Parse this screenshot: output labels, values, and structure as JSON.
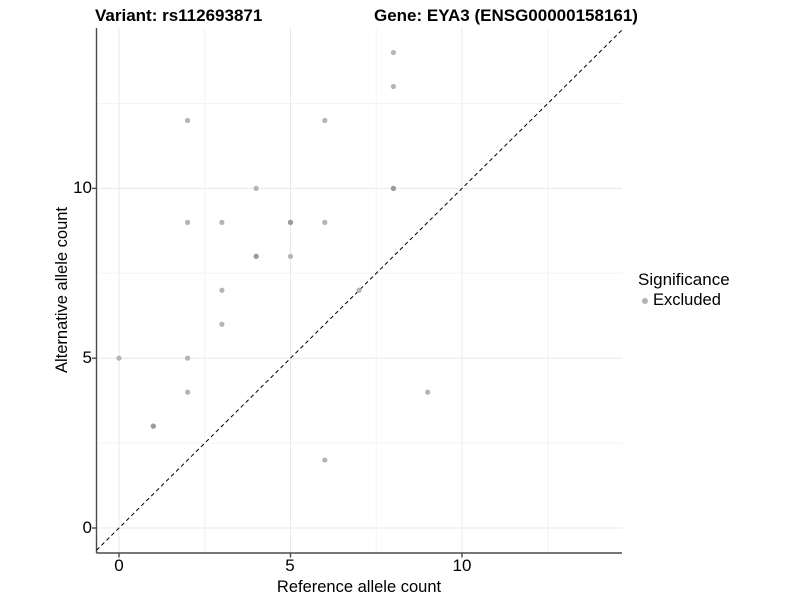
{
  "titles": {
    "variant": "Variant: rs112693871",
    "gene": "Gene: EYA3 (ENSG00000158161)"
  },
  "axes": {
    "x": {
      "label": "Reference allele count",
      "ticks": [
        "0",
        "5",
        "10"
      ]
    },
    "y": {
      "label": "Alternative allele count",
      "ticks": [
        "0",
        "5",
        "10"
      ]
    }
  },
  "legend": {
    "title": "Significance",
    "items": [
      {
        "label": "Excluded",
        "color": "#b4b4b4"
      }
    ]
  },
  "colors": {
    "background": "#ffffff",
    "grid_major": "#e8e8e8",
    "grid_minor": "#f3f3f3",
    "axis": "#4a4a4a",
    "identity_line": "#000000",
    "point": "#b4b4b4",
    "point_overplotted": "#9b9b9b",
    "text": "#000000"
  },
  "chart_data": {
    "type": "scatter",
    "title": "Variant: rs112693871 — Gene: EYA3 (ENSG00000158161)",
    "xlabel": "Reference allele count",
    "ylabel": "Alternative allele count",
    "xlim": [
      -0.65,
      14.66
    ],
    "ylim": [
      -0.74,
      14.72
    ],
    "x_major_ticks": [
      0,
      5,
      10
    ],
    "y_major_ticks": [
      0,
      5,
      10
    ],
    "minor_gridlines": [
      2.5,
      7.5,
      12.5
    ],
    "grid": "on",
    "legend_position": "right",
    "identity_line": {
      "style": "dashed",
      "equation": "y = x"
    },
    "series": [
      {
        "name": "Excluded",
        "color": "#b4b4b4",
        "points": [
          [
            0,
            5
          ],
          [
            1,
            3
          ],
          [
            2,
            4
          ],
          [
            2,
            5
          ],
          [
            2,
            9
          ],
          [
            2,
            12
          ],
          [
            3,
            6
          ],
          [
            3,
            7
          ],
          [
            3,
            9
          ],
          [
            4,
            8
          ],
          [
            4,
            10
          ],
          [
            5,
            8
          ],
          [
            5,
            9
          ],
          [
            6,
            2
          ],
          [
            6,
            9
          ],
          [
            6,
            12
          ],
          [
            7,
            7
          ],
          [
            8,
            10
          ],
          [
            8,
            13
          ],
          [
            8,
            14
          ],
          [
            9,
            4
          ]
        ],
        "overplotted_points": [
          [
            1,
            3
          ],
          [
            4,
            8
          ],
          [
            5,
            9
          ],
          [
            8,
            10
          ]
        ]
      }
    ]
  }
}
